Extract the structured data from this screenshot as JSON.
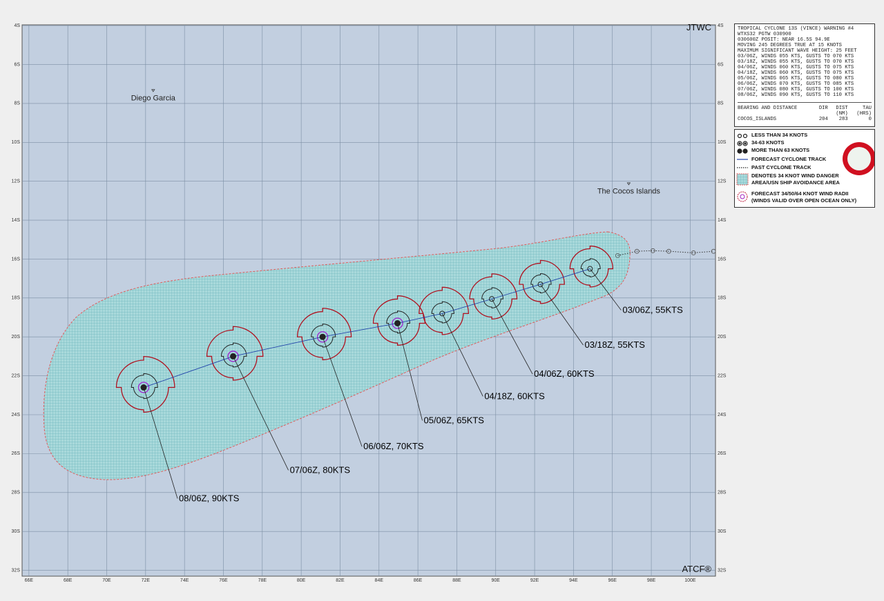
{
  "map": {
    "xlim": [
      65.65,
      101.3
    ],
    "ylim": [
      3.96,
      32.3
    ],
    "xticks": [
      {
        "value": 66,
        "label": "66E"
      },
      {
        "value": 68,
        "label": "68E"
      },
      {
        "value": 70,
        "label": "70E"
      },
      {
        "value": 72,
        "label": "72E"
      },
      {
        "value": 74,
        "label": "74E"
      },
      {
        "value": 76,
        "label": "76E"
      },
      {
        "value": 78,
        "label": "78E"
      },
      {
        "value": 80,
        "label": "80E"
      },
      {
        "value": 82,
        "label": "82E"
      },
      {
        "value": 84,
        "label": "84E"
      },
      {
        "value": 86,
        "label": "86E"
      },
      {
        "value": 88,
        "label": "88E"
      },
      {
        "value": 90,
        "label": "90E"
      },
      {
        "value": 92,
        "label": "92E"
      },
      {
        "value": 94,
        "label": "94E"
      },
      {
        "value": 96,
        "label": "96E"
      },
      {
        "value": 98,
        "label": "98E"
      },
      {
        "value": 100,
        "label": "100E"
      }
    ],
    "yticks": [
      {
        "value": 4,
        "label": "4S"
      },
      {
        "value": 6,
        "label": "6S"
      },
      {
        "value": 8,
        "label": "8S"
      },
      {
        "value": 10,
        "label": "10S"
      },
      {
        "value": 12,
        "label": "12S"
      },
      {
        "value": 14,
        "label": "14S"
      },
      {
        "value": 16,
        "label": "16S"
      },
      {
        "value": 18,
        "label": "18S"
      },
      {
        "value": 20,
        "label": "20S"
      },
      {
        "value": 22,
        "label": "22S"
      },
      {
        "value": 24,
        "label": "24S"
      },
      {
        "value": 26,
        "label": "26S"
      },
      {
        "value": 28,
        "label": "28S"
      },
      {
        "value": 30,
        "label": "30S"
      },
      {
        "value": 32,
        "label": "32S"
      }
    ],
    "corner_labels": {
      "top": "JTWC",
      "bottom": "ATCF®"
    },
    "places": [
      {
        "name": "Diego Garcia",
        "lon": 72.39,
        "lat": 7.34
      },
      {
        "name": "The Cocos Islands",
        "lon": 96.84,
        "lat": 12.13
      }
    ],
    "forecast": {
      "labels": [
        "03/06Z, 55KTS",
        "03/18Z, 55KTS",
        "04/06Z, 60KTS",
        "04/18Z, 60KTS",
        "05/06Z, 65KTS",
        "06/06Z, 70KTS",
        "07/06Z, 80KTS",
        "08/06Z, 90KTS"
      ],
      "lon": [
        94.85,
        92.3,
        89.8,
        87.25,
        84.95,
        81.1,
        76.5,
        71.9
      ],
      "lat": [
        16.5,
        17.3,
        18.05,
        18.8,
        19.3,
        20.0,
        21.0,
        22.6
      ]
    },
    "past_track": {
      "lon": [
        96.27,
        97.26,
        98.08,
        98.9,
        100.17,
        101.2
      ],
      "lat": [
        15.82,
        15.6,
        15.57,
        15.6,
        15.68,
        15.6
      ]
    }
  },
  "warning": {
    "lines": [
      "TROPICAL CYCLONE 13S (VINCE) WARNING #4",
      "WTXS32 PGTW 030900",
      "030600Z POSIT: NEAR 16.5S 94.9E",
      "MOVING 245 DEGREES TRUE AT 15 KNOTS",
      "MAXIMUM SIGNIFICANT WAVE HEIGHT: 25 FEET",
      "03/06Z, WINDS 055 KTS, GUSTS TO 070 KTS",
      "03/18Z, WINDS 055 KTS, GUSTS TO 070 KTS",
      "04/06Z, WINDS 060 KTS, GUSTS TO 075 KTS",
      "04/18Z, WINDS 060 KTS, GUSTS TO 075 KTS",
      "05/06Z, WINDS 065 KTS, GUSTS TO 080 KTS",
      "06/06Z, WINDS 070 KTS, GUSTS TO 085 KTS",
      "07/06Z, WINDS 080 KTS, GUSTS TO 100 KTS",
      "08/06Z, WINDS 090 KTS, GUSTS TO 110 KTS"
    ],
    "table": {
      "header1": [
        "BEARING AND DISTANCE",
        "DIR",
        "DIST",
        "TAU"
      ],
      "header2": [
        "",
        "",
        "(NM)",
        "(HRS)"
      ],
      "row": [
        "COCOS_ISLANDS",
        "204",
        "283",
        "0"
      ]
    }
  },
  "legend": [
    "LESS THAN 34 KNOTS",
    "34-63 KNOTS",
    "MORE THAN 63 KNOTS",
    "FORECAST CYCLONE TRACK",
    "PAST CYCLONE TRACK",
    "DENOTES 34 KNOT WIND DANGER",
    "AREA/USN SHIP AVOIDANCE AREA",
    "FORECAST 34/50/64 KNOT WIND RADII",
    "(WINDS VALID OVER OPEN OCEAN ONLY)"
  ]
}
